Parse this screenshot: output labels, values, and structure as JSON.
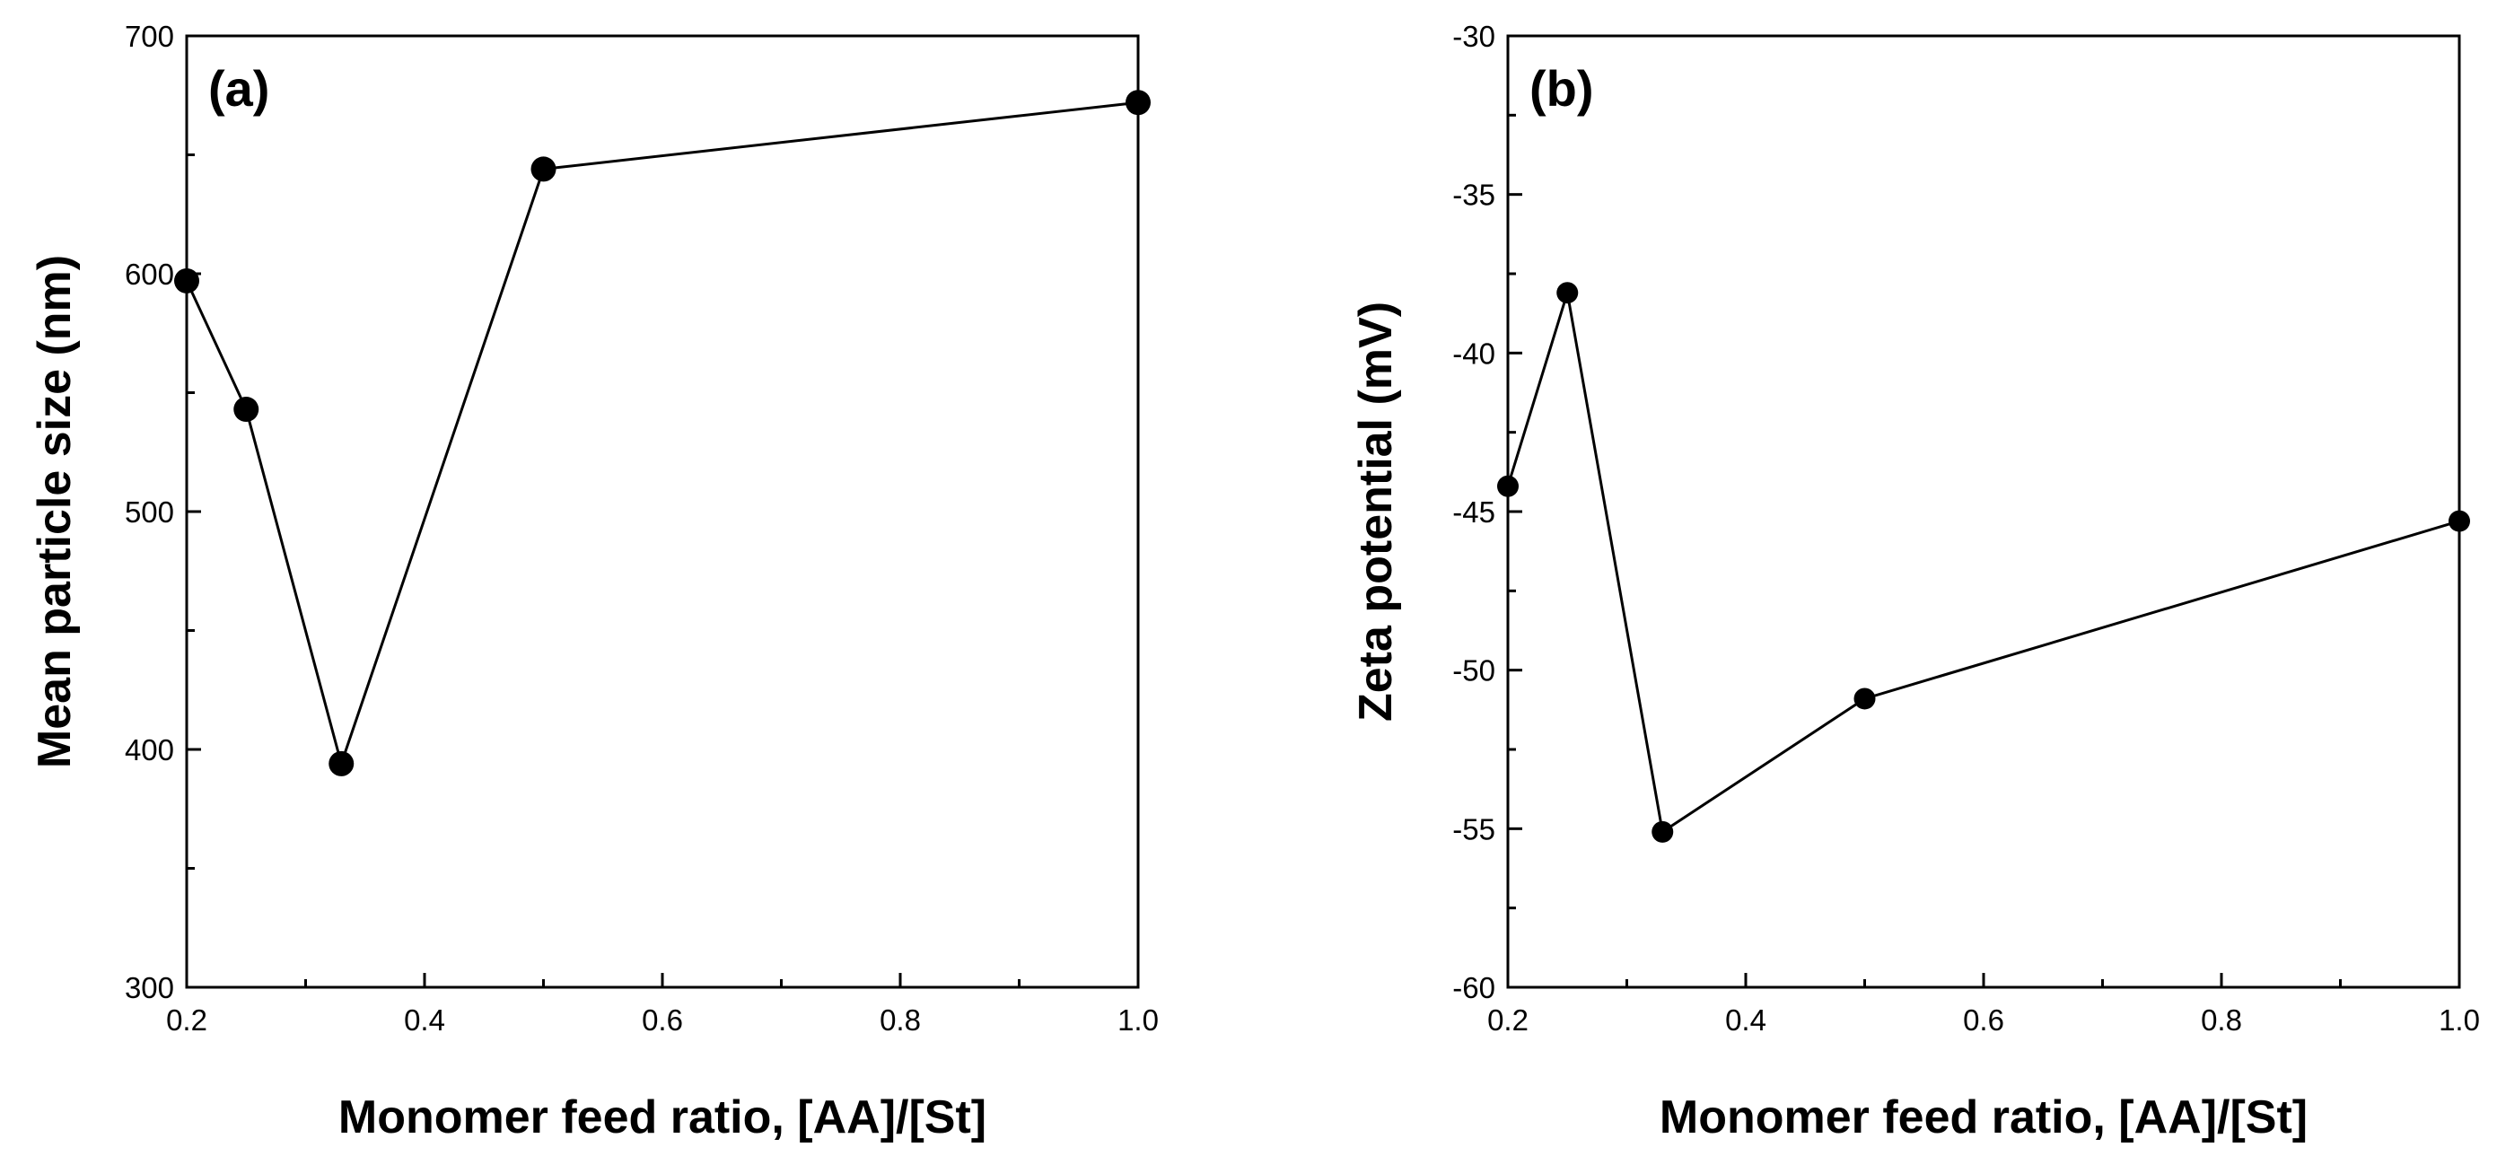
{
  "chart_data": [
    {
      "type": "line",
      "panel_label": "(a)",
      "title": "",
      "xlabel": "Monomer feed ratio, [AA]/[St]",
      "ylabel": "Mean particle size (nm)",
      "xlim": [
        0.2,
        1.0
      ],
      "ylim": [
        300,
        700
      ],
      "xticks": [
        0.2,
        0.4,
        0.6,
        0.8,
        1.0
      ],
      "xtick_labels": [
        "0.2",
        "0.4",
        "0.6",
        "0.8",
        "1.0"
      ],
      "yticks": [
        300,
        400,
        500,
        600,
        700
      ],
      "ytick_labels": [
        "300",
        "400",
        "500",
        "600",
        "700"
      ],
      "grid": false,
      "series": [
        {
          "name": "Mean particle size",
          "x": [
            0.2,
            0.25,
            0.33,
            0.5,
            1.0
          ],
          "y": [
            597,
            543,
            394,
            644,
            672
          ]
        }
      ]
    },
    {
      "type": "line",
      "panel_label": "(b)",
      "title": "",
      "xlabel": "Monomer feed ratio, [AA]/[St]",
      "ylabel": "Zeta potential (mV)",
      "xlim": [
        0.2,
        1.0
      ],
      "ylim": [
        -60,
        -30
      ],
      "xticks": [
        0.2,
        0.4,
        0.6,
        0.8,
        1.0
      ],
      "xtick_labels": [
        "0.2",
        "0.4",
        "0.6",
        "0.8",
        "1.0"
      ],
      "yticks": [
        -60,
        -55,
        -50,
        -45,
        -40,
        -35,
        -30
      ],
      "ytick_labels": [
        "-60",
        "-55",
        "-50",
        "-45",
        "-40",
        "-35",
        "-30"
      ],
      "grid": false,
      "series": [
        {
          "name": "Zeta potential",
          "x": [
            0.2,
            0.25,
            0.33,
            0.5,
            1.0
          ],
          "y": [
            -44.2,
            -38.1,
            -55.1,
            -50.9,
            -45.3
          ]
        }
      ]
    }
  ]
}
